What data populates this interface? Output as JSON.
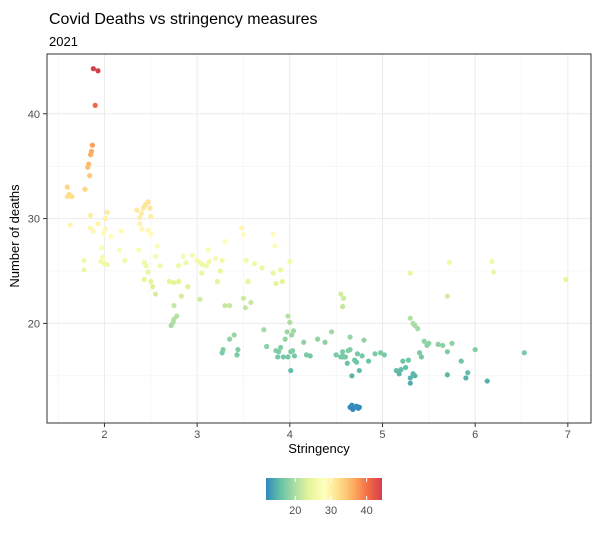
{
  "chart_data": {
    "type": "scatter",
    "title": "Covid Deaths vs  stringency measures",
    "subtitle": "2021",
    "xlabel": "Stringency",
    "ylabel": "Number of deaths",
    "xlim": [
      1.38,
      7.25
    ],
    "ylim": [
      10.5,
      45.7
    ],
    "xticks": [
      2,
      3,
      4,
      5,
      6,
      7
    ],
    "yticks": [
      20,
      30,
      40
    ],
    "grid": true,
    "legend": {
      "position": "bottom",
      "type": "colorbar",
      "range": [
        11.8,
        44.3
      ],
      "ticks": [
        20,
        30,
        40
      ],
      "colors": [
        "#3288bd",
        "#66c2a5",
        "#abdda4",
        "#e6f598",
        "#ffffbf",
        "#fee08b",
        "#fdae61",
        "#f46d43",
        "#d53e4f"
      ]
    },
    "color_by": "y",
    "point_color": "#9e9e9e",
    "points": [
      [
        1.88,
        44.3
      ],
      [
        1.93,
        44.1
      ],
      [
        1.9,
        40.8
      ],
      [
        1.87,
        37.0
      ],
      [
        1.86,
        36.4
      ],
      [
        1.85,
        36.1
      ],
      [
        1.83,
        35.2
      ],
      [
        1.82,
        34.9
      ],
      [
        1.84,
        34.1
      ],
      [
        1.79,
        32.8
      ],
      [
        1.6,
        33.0
      ],
      [
        1.62,
        32.3
      ],
      [
        1.6,
        32.1
      ],
      [
        1.65,
        32.1
      ],
      [
        1.63,
        29.4
      ],
      [
        1.85,
        30.3
      ],
      [
        1.78,
        26.0
      ],
      [
        1.78,
        25.1
      ],
      [
        1.85,
        29.1
      ],
      [
        1.88,
        28.8
      ],
      [
        1.93,
        29.5
      ],
      [
        1.97,
        27.2
      ],
      [
        1.99,
        28.6
      ],
      [
        2.01,
        29.0
      ],
      [
        2.01,
        30.0
      ],
      [
        2.03,
        30.6
      ],
      [
        1.98,
        26.3
      ],
      [
        2.0,
        25.7
      ],
      [
        2.03,
        25.6
      ],
      [
        1.96,
        25.9
      ],
      [
        2.07,
        28.3
      ],
      [
        2.16,
        27.0
      ],
      [
        2.18,
        28.8
      ],
      [
        2.22,
        26.0
      ],
      [
        2.35,
        30.8
      ],
      [
        2.38,
        30.1
      ],
      [
        2.4,
        30.5
      ],
      [
        2.42,
        31.0
      ],
      [
        2.44,
        31.3
      ],
      [
        2.47,
        31.6
      ],
      [
        2.49,
        31.0
      ],
      [
        2.5,
        30.2
      ],
      [
        2.38,
        29.5
      ],
      [
        2.4,
        29.0
      ],
      [
        2.47,
        28.9
      ],
      [
        2.5,
        28.5
      ],
      [
        2.37,
        27.0
      ],
      [
        2.43,
        25.8
      ],
      [
        2.45,
        25.5
      ],
      [
        2.47,
        24.9
      ],
      [
        2.5,
        24.0
      ],
      [
        2.52,
        23.5
      ],
      [
        2.43,
        24.2
      ],
      [
        2.55,
        22.8
      ],
      [
        2.57,
        27.4
      ],
      [
        2.55,
        26.4
      ],
      [
        2.6,
        25.5
      ],
      [
        2.7,
        24.0
      ],
      [
        2.75,
        23.9
      ],
      [
        2.8,
        24.0
      ],
      [
        2.8,
        25.5
      ],
      [
        2.85,
        26.4
      ],
      [
        2.88,
        25.8
      ],
      [
        2.75,
        21.7
      ],
      [
        2.78,
        20.7
      ],
      [
        2.75,
        20.4
      ],
      [
        2.74,
        20.1
      ],
      [
        2.72,
        19.8
      ],
      [
        2.83,
        22.6
      ],
      [
        2.9,
        23.5
      ],
      [
        2.95,
        26.5
      ],
      [
        3.0,
        26.0
      ],
      [
        3.03,
        25.8
      ],
      [
        3.06,
        25.6
      ],
      [
        3.1,
        25.5
      ],
      [
        3.13,
        25.9
      ],
      [
        3.03,
        22.3
      ],
      [
        3.05,
        24.8
      ],
      [
        3.12,
        27.0
      ],
      [
        3.2,
        26.2
      ],
      [
        3.22,
        24.0
      ],
      [
        3.25,
        25.0
      ],
      [
        3.27,
        26.0
      ],
      [
        3.3,
        27.8
      ],
      [
        3.3,
        21.7
      ],
      [
        3.35,
        21.7
      ],
      [
        3.48,
        29.1
      ],
      [
        3.5,
        28.5
      ],
      [
        3.53,
        26.0
      ],
      [
        3.55,
        24.0
      ],
      [
        3.27,
        17.2
      ],
      [
        3.28,
        17.5
      ],
      [
        3.35,
        18.5
      ],
      [
        3.4,
        18.9
      ],
      [
        3.43,
        17.0
      ],
      [
        3.44,
        17.5
      ],
      [
        3.5,
        22.4
      ],
      [
        3.52,
        21.5
      ],
      [
        3.58,
        22.0
      ],
      [
        3.62,
        25.7
      ],
      [
        3.7,
        25.3
      ],
      [
        3.82,
        28.5
      ],
      [
        3.84,
        27.4
      ],
      [
        3.82,
        24.8
      ],
      [
        3.85,
        23.8
      ],
      [
        3.9,
        25.1
      ],
      [
        3.92,
        24.0
      ],
      [
        3.72,
        19.4
      ],
      [
        3.75,
        17.8
      ],
      [
        3.85,
        17.4
      ],
      [
        3.87,
        16.8
      ],
      [
        3.9,
        17.7
      ],
      [
        3.93,
        16.8
      ],
      [
        3.95,
        18.5
      ],
      [
        3.97,
        19.2
      ],
      [
        4.0,
        25.9
      ],
      [
        3.98,
        20.7
      ],
      [
        4.0,
        20.1
      ],
      [
        3.98,
        16.8
      ],
      [
        4.01,
        17.3
      ],
      [
        4.03,
        17.4
      ],
      [
        4.04,
        19.3
      ],
      [
        4.05,
        16.9
      ],
      [
        4.01,
        15.5
      ],
      [
        4.02,
        18.9
      ],
      [
        3.88,
        17.3
      ],
      [
        4.15,
        18.2
      ],
      [
        4.18,
        17.0
      ],
      [
        4.22,
        16.9
      ],
      [
        4.3,
        18.5
      ],
      [
        4.38,
        18.2
      ],
      [
        4.45,
        19.2
      ],
      [
        4.5,
        17.0
      ],
      [
        4.55,
        22.8
      ],
      [
        4.58,
        22.4
      ],
      [
        4.57,
        21.6
      ],
      [
        4.57,
        17.3
      ],
      [
        4.58,
        16.8
      ],
      [
        4.6,
        16.8
      ],
      [
        4.62,
        16.2
      ],
      [
        4.63,
        17.4
      ],
      [
        4.65,
        17.5
      ],
      [
        4.65,
        18.7
      ],
      [
        4.67,
        15.0
      ],
      [
        4.7,
        16.5
      ],
      [
        4.72,
        16.3
      ],
      [
        4.55,
        16.8
      ],
      [
        4.57,
        16.9
      ],
      [
        4.73,
        17.1
      ],
      [
        4.75,
        15.5
      ],
      [
        4.78,
        16.9
      ],
      [
        4.8,
        18.4
      ],
      [
        4.85,
        16.4
      ],
      [
        4.92,
        17.1
      ],
      [
        4.98,
        17.2
      ],
      [
        5.02,
        17.0
      ],
      [
        5.15,
        15.5
      ],
      [
        5.18,
        15.2
      ],
      [
        5.2,
        15.6
      ],
      [
        5.22,
        16.4
      ],
      [
        5.25,
        15.8
      ],
      [
        5.28,
        16.5
      ],
      [
        5.3,
        14.8
      ],
      [
        5.3,
        14.3
      ],
      [
        5.33,
        15.2
      ],
      [
        5.35,
        15.0
      ],
      [
        5.3,
        20.5
      ],
      [
        5.33,
        20.0
      ],
      [
        5.35,
        19.8
      ],
      [
        5.38,
        19.5
      ],
      [
        5.3,
        24.8
      ],
      [
        5.4,
        17.2
      ],
      [
        5.42,
        16.8
      ],
      [
        5.45,
        18.3
      ],
      [
        5.48,
        17.9
      ],
      [
        5.5,
        18.1
      ],
      [
        5.6,
        18.0
      ],
      [
        5.65,
        17.9
      ],
      [
        5.7,
        17.3
      ],
      [
        5.72,
        25.8
      ],
      [
        5.7,
        22.6
      ],
      [
        5.75,
        18.1
      ],
      [
        5.7,
        15.1
      ],
      [
        5.85,
        16.4
      ],
      [
        5.9,
        14.8
      ],
      [
        5.92,
        15.3
      ],
      [
        6.0,
        17.5
      ],
      [
        6.13,
        14.5
      ],
      [
        6.18,
        25.9
      ],
      [
        6.2,
        24.9
      ],
      [
        6.53,
        17.2
      ],
      [
        6.98,
        24.2
      ],
      [
        4.65,
        12.0
      ],
      [
        4.67,
        12.2
      ],
      [
        4.68,
        11.8
      ],
      [
        4.7,
        12.0
      ],
      [
        4.72,
        12.1
      ],
      [
        4.74,
        11.9
      ],
      [
        4.75,
        12.0
      ]
    ]
  }
}
